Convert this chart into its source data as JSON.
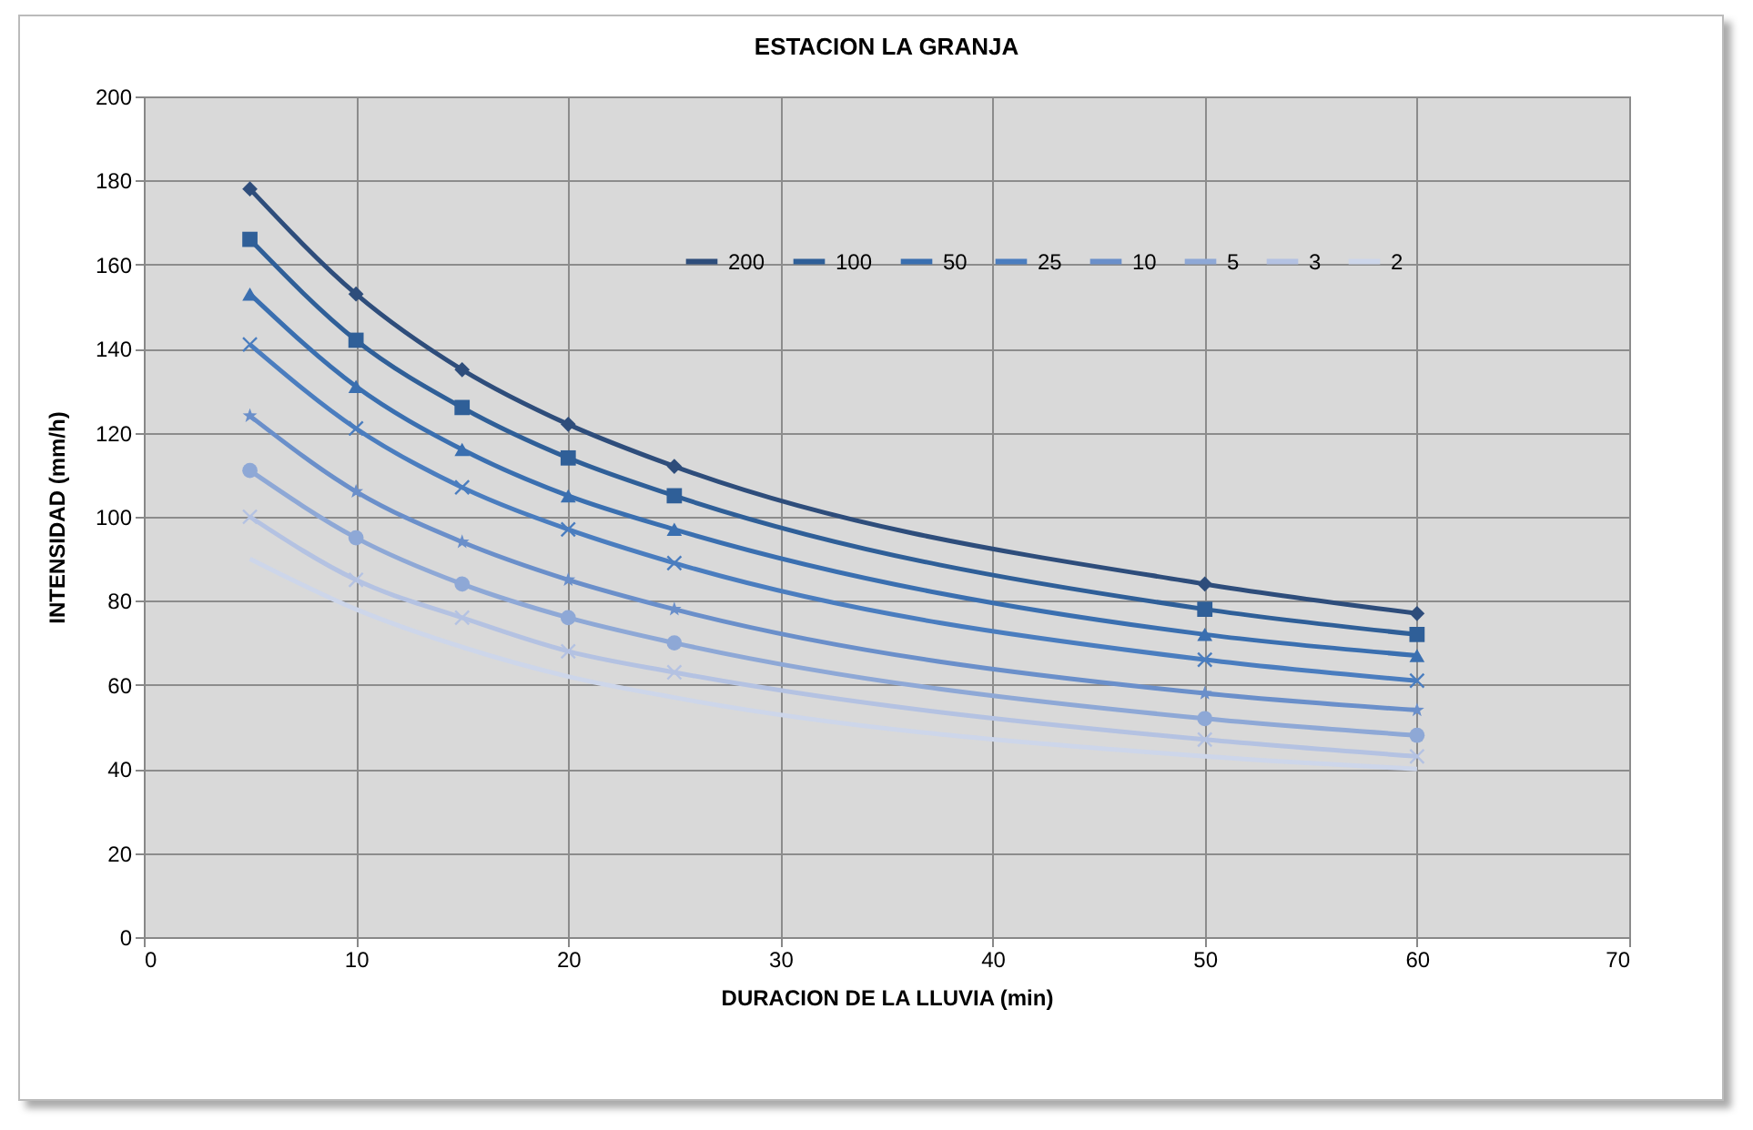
{
  "chart_data": {
    "type": "line",
    "title": "ESTACION  LA GRANJA",
    "xlabel": "DURACION DE LA LLUVIA (min)",
    "ylabel": "INTENSIDAD (mm/h)",
    "x": [
      5,
      10,
      15,
      20,
      25,
      50,
      60
    ],
    "series": [
      {
        "name": "200",
        "color": "#2e4d7b",
        "marker": "diamond",
        "values": [
          178,
          153,
          135,
          122,
          112,
          84,
          77
        ]
      },
      {
        "name": "100",
        "color": "#2f5f98",
        "marker": "square",
        "values": [
          166,
          142,
          126,
          114,
          105,
          78,
          72
        ]
      },
      {
        "name": "50",
        "color": "#3a6fb0",
        "marker": "triangle",
        "values": [
          153,
          131,
          116,
          105,
          97,
          72,
          67
        ]
      },
      {
        "name": "25",
        "color": "#4a7dbf",
        "marker": "cross",
        "values": [
          141,
          121,
          107,
          97,
          89,
          66,
          61
        ]
      },
      {
        "name": "10",
        "color": "#6a8fca",
        "marker": "star",
        "values": [
          124,
          106,
          94,
          85,
          78,
          58,
          54
        ]
      },
      {
        "name": "5",
        "color": "#8ea8d6",
        "marker": "circle",
        "values": [
          111,
          95,
          84,
          76,
          70,
          52,
          48
        ]
      },
      {
        "name": "3",
        "color": "#b4c2e2",
        "marker": "cross",
        "values": [
          100,
          85,
          76,
          68,
          63,
          47,
          43
        ]
      },
      {
        "name": "2",
        "color": "#cdd6ea",
        "marker": "none",
        "values": [
          90,
          78,
          69,
          62,
          57,
          43,
          40
        ]
      }
    ],
    "xlim": [
      0,
      70
    ],
    "xticks": [
      0,
      10,
      20,
      30,
      40,
      50,
      60,
      70
    ],
    "ylim": [
      0,
      200
    ],
    "yticks": [
      0,
      20,
      40,
      60,
      80,
      100,
      120,
      140,
      160,
      180,
      200
    ],
    "grid": true,
    "legend": "top right",
    "line_style": "solid"
  }
}
